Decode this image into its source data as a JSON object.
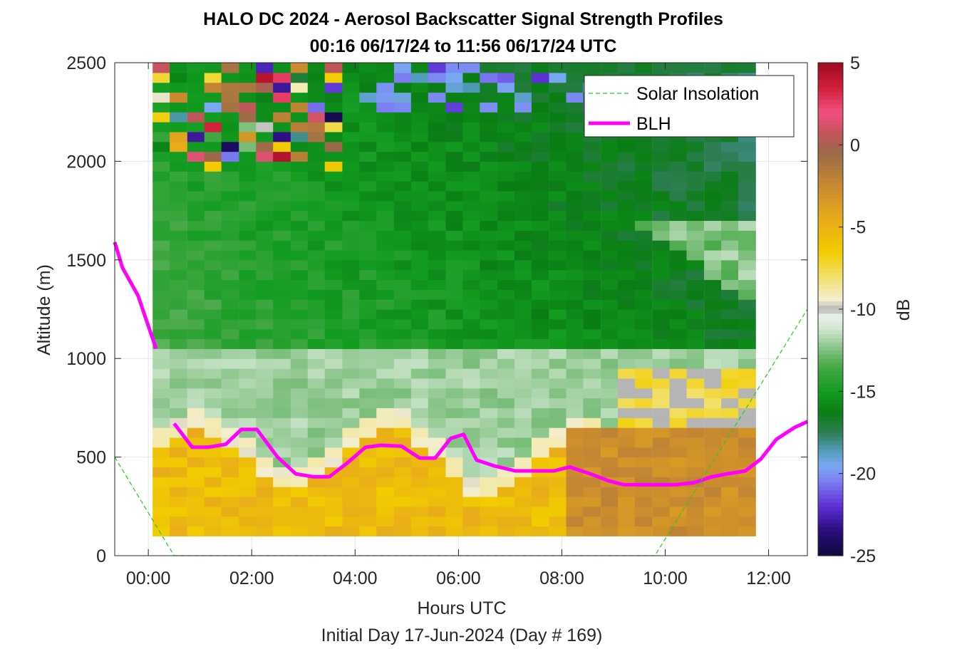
{
  "chart_data": {
    "type": "heatmap",
    "title": "HALO DC 2024 - Aerosol Backscatter Signal Strength Profiles",
    "subtitle": "00:16 06/17/24 to 11:56 06/17/24  UTC",
    "xlabel": "Hours UTC",
    "footer": "Initial Day 17-Jun-2024 (Day # 169)",
    "ylabel": "Altitude (m)",
    "colorbar_label": "dB",
    "xlim": [
      -0.65,
      12.75
    ],
    "ylim": [
      0,
      2500
    ],
    "xticks": [
      0,
      2,
      4,
      6,
      8,
      10,
      12
    ],
    "xtick_labels": [
      "00:00",
      "02:00",
      "04:00",
      "06:00",
      "08:00",
      "10:00",
      "12:00"
    ],
    "yticks": [
      0,
      500,
      1000,
      1500,
      2000,
      2500
    ],
    "ytick_labels": [
      "0",
      "500",
      "1000",
      "1500",
      "2000",
      "2500"
    ],
    "clim": [
      -25,
      5
    ],
    "cticks": [
      -25,
      -20,
      -15,
      -10,
      -5,
      0,
      5
    ],
    "ctick_labels": [
      "-25",
      "-20",
      "-15",
      "-10",
      "-5",
      "0",
      "5"
    ],
    "grid": true,
    "legend_position": "top-right",
    "legend": [
      {
        "name": "Solar Insolation",
        "color": "#22cc22",
        "style": "dashed"
      },
      {
        "name": "BLH",
        "color": "#ff00ff",
        "style": "solid"
      }
    ],
    "heatmap_cell_width_h": 0.3333,
    "heatmap_altitudes": [
      100,
      150,
      200,
      250,
      300,
      350,
      400,
      450,
      500,
      550,
      600,
      650,
      700,
      750,
      800,
      850,
      900,
      950,
      1000,
      1050,
      1100,
      1150,
      1200,
      1250,
      1300,
      1350,
      1400,
      1450,
      1500,
      1550,
      1600,
      1650,
      1700,
      1750,
      1800,
      1850,
      1900,
      1950,
      2000,
      2050,
      2100,
      2150,
      2200,
      2250,
      2300,
      2350,
      2400,
      2450
    ],
    "heatmap_times": [
      0.25,
      0.58,
      0.92,
      1.25,
      1.58,
      1.92,
      2.25,
      2.58,
      2.92,
      3.25,
      3.58,
      3.92,
      4.25,
      4.58,
      4.92,
      5.25,
      5.58,
      5.92,
      6.25,
      6.58,
      6.92,
      7.25,
      7.58,
      7.92,
      8.25,
      8.58,
      8.92,
      9.25,
      9.58,
      9.92,
      10.25,
      10.58,
      10.92,
      11.25,
      11.58
    ],
    "series": [
      {
        "name": "BLH",
        "x": [
          -0.65,
          -0.5,
          -0.2,
          0.15,
          0.5,
          0.85,
          1.15,
          1.5,
          1.8,
          2.1,
          2.5,
          2.85,
          3.2,
          3.5,
          3.85,
          4.2,
          4.5,
          4.9,
          5.25,
          5.55,
          5.85,
          6.1,
          6.35,
          6.7,
          7.1,
          7.45,
          7.85,
          8.15,
          8.55,
          8.9,
          9.2,
          9.55,
          9.9,
          10.2,
          10.55,
          10.9,
          11.2,
          11.55,
          11.85,
          12.15,
          12.5,
          12.75
        ],
        "y": [
          1590,
          1460,
          1320,
          1050,
          670,
          550,
          550,
          565,
          640,
          640,
          500,
          415,
          400,
          400,
          470,
          550,
          560,
          555,
          495,
          495,
          595,
          615,
          485,
          455,
          430,
          430,
          430,
          450,
          415,
          380,
          360,
          360,
          360,
          360,
          370,
          400,
          415,
          430,
          490,
          590,
          650,
          680
        ]
      },
      {
        "name": "Solar Insolation",
        "x": [
          -0.65,
          0.5,
          9.8,
          12.75
        ],
        "y": [
          500,
          0,
          0,
          1250
        ]
      }
    ],
    "colormap": [
      {
        "v": -25,
        "c": "#0d0a3d"
      },
      {
        "v": -23.5,
        "c": "#2a0c7a"
      },
      {
        "v": -22,
        "c": "#5b2dd2"
      },
      {
        "v": -20.5,
        "c": "#7c7cf2"
      },
      {
        "v": -19.5,
        "c": "#7aa9f2"
      },
      {
        "v": -18.5,
        "c": "#4d9ab3"
      },
      {
        "v": -17.5,
        "c": "#2f7d55"
      },
      {
        "v": -16.3,
        "c": "#0a7d14"
      },
      {
        "v": -15,
        "c": "#129c20"
      },
      {
        "v": -13.5,
        "c": "#45a845"
      },
      {
        "v": -12.5,
        "c": "#7ebf7e"
      },
      {
        "v": -11.2,
        "c": "#cfe6cf"
      },
      {
        "v": -10.4,
        "c": "#eaf2ea"
      },
      {
        "v": -10,
        "c": "#b5b5b5"
      },
      {
        "v": -9.4,
        "c": "#f4eed0"
      },
      {
        "v": -8,
        "c": "#f2e06a"
      },
      {
        "v": -6.5,
        "c": "#f2cc00"
      },
      {
        "v": -4.5,
        "c": "#e8ab1a"
      },
      {
        "v": -2.5,
        "c": "#c98a2f"
      },
      {
        "v": -0.5,
        "c": "#9a6a4a"
      },
      {
        "v": 0.8,
        "c": "#c4545c"
      },
      {
        "v": 2,
        "c": "#f25080"
      },
      {
        "v": 3.5,
        "c": "#d01f3a"
      },
      {
        "v": 5,
        "c": "#9e0a22"
      }
    ]
  }
}
